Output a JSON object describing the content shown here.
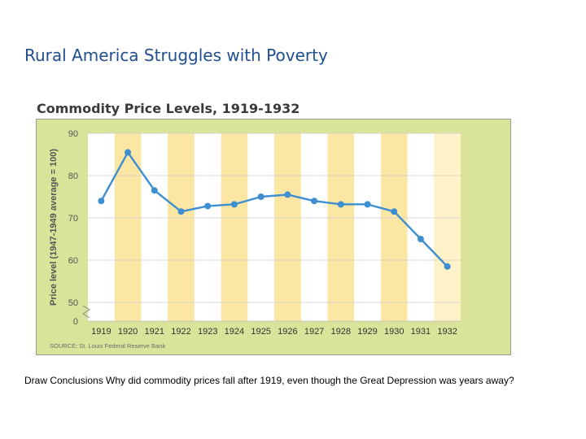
{
  "slide": {
    "title": "Rural America Struggles with Poverty",
    "caption": "Draw Conclusions Why did commodity prices fall after 1919, even though the Great Depression was years away?"
  },
  "colors": {
    "title": "#1f4e91",
    "frame_background": "#d9e39a",
    "band_yellow": "#fbe6a3",
    "band_white": "#ffffff",
    "band_last": "#fdf2c8",
    "line": "#3d8fd1",
    "axis_text": "#555555"
  },
  "chart_data": {
    "type": "line",
    "title": "Commodity Price Levels, 1919-1932",
    "ylabel": "Price level (1947-1949 average = 100)",
    "xlabel": "",
    "source": "SOURCE: St. Louis Federal Reserve Bank",
    "categories": [
      "1919",
      "1920",
      "1921",
      "1922",
      "1923",
      "1924",
      "1925",
      "1926",
      "1927",
      "1928",
      "1929",
      "1930",
      "1931",
      "1932"
    ],
    "values": [
      74,
      85.5,
      76.5,
      71.5,
      72.8,
      73.2,
      75,
      75.5,
      74,
      73.2,
      73.2,
      71.5,
      65,
      58.5
    ],
    "ylim": [
      50,
      90
    ],
    "yticks": [
      50,
      60,
      70,
      80,
      90
    ],
    "baseline_tick": "0",
    "axis_break": true,
    "grid": true
  }
}
